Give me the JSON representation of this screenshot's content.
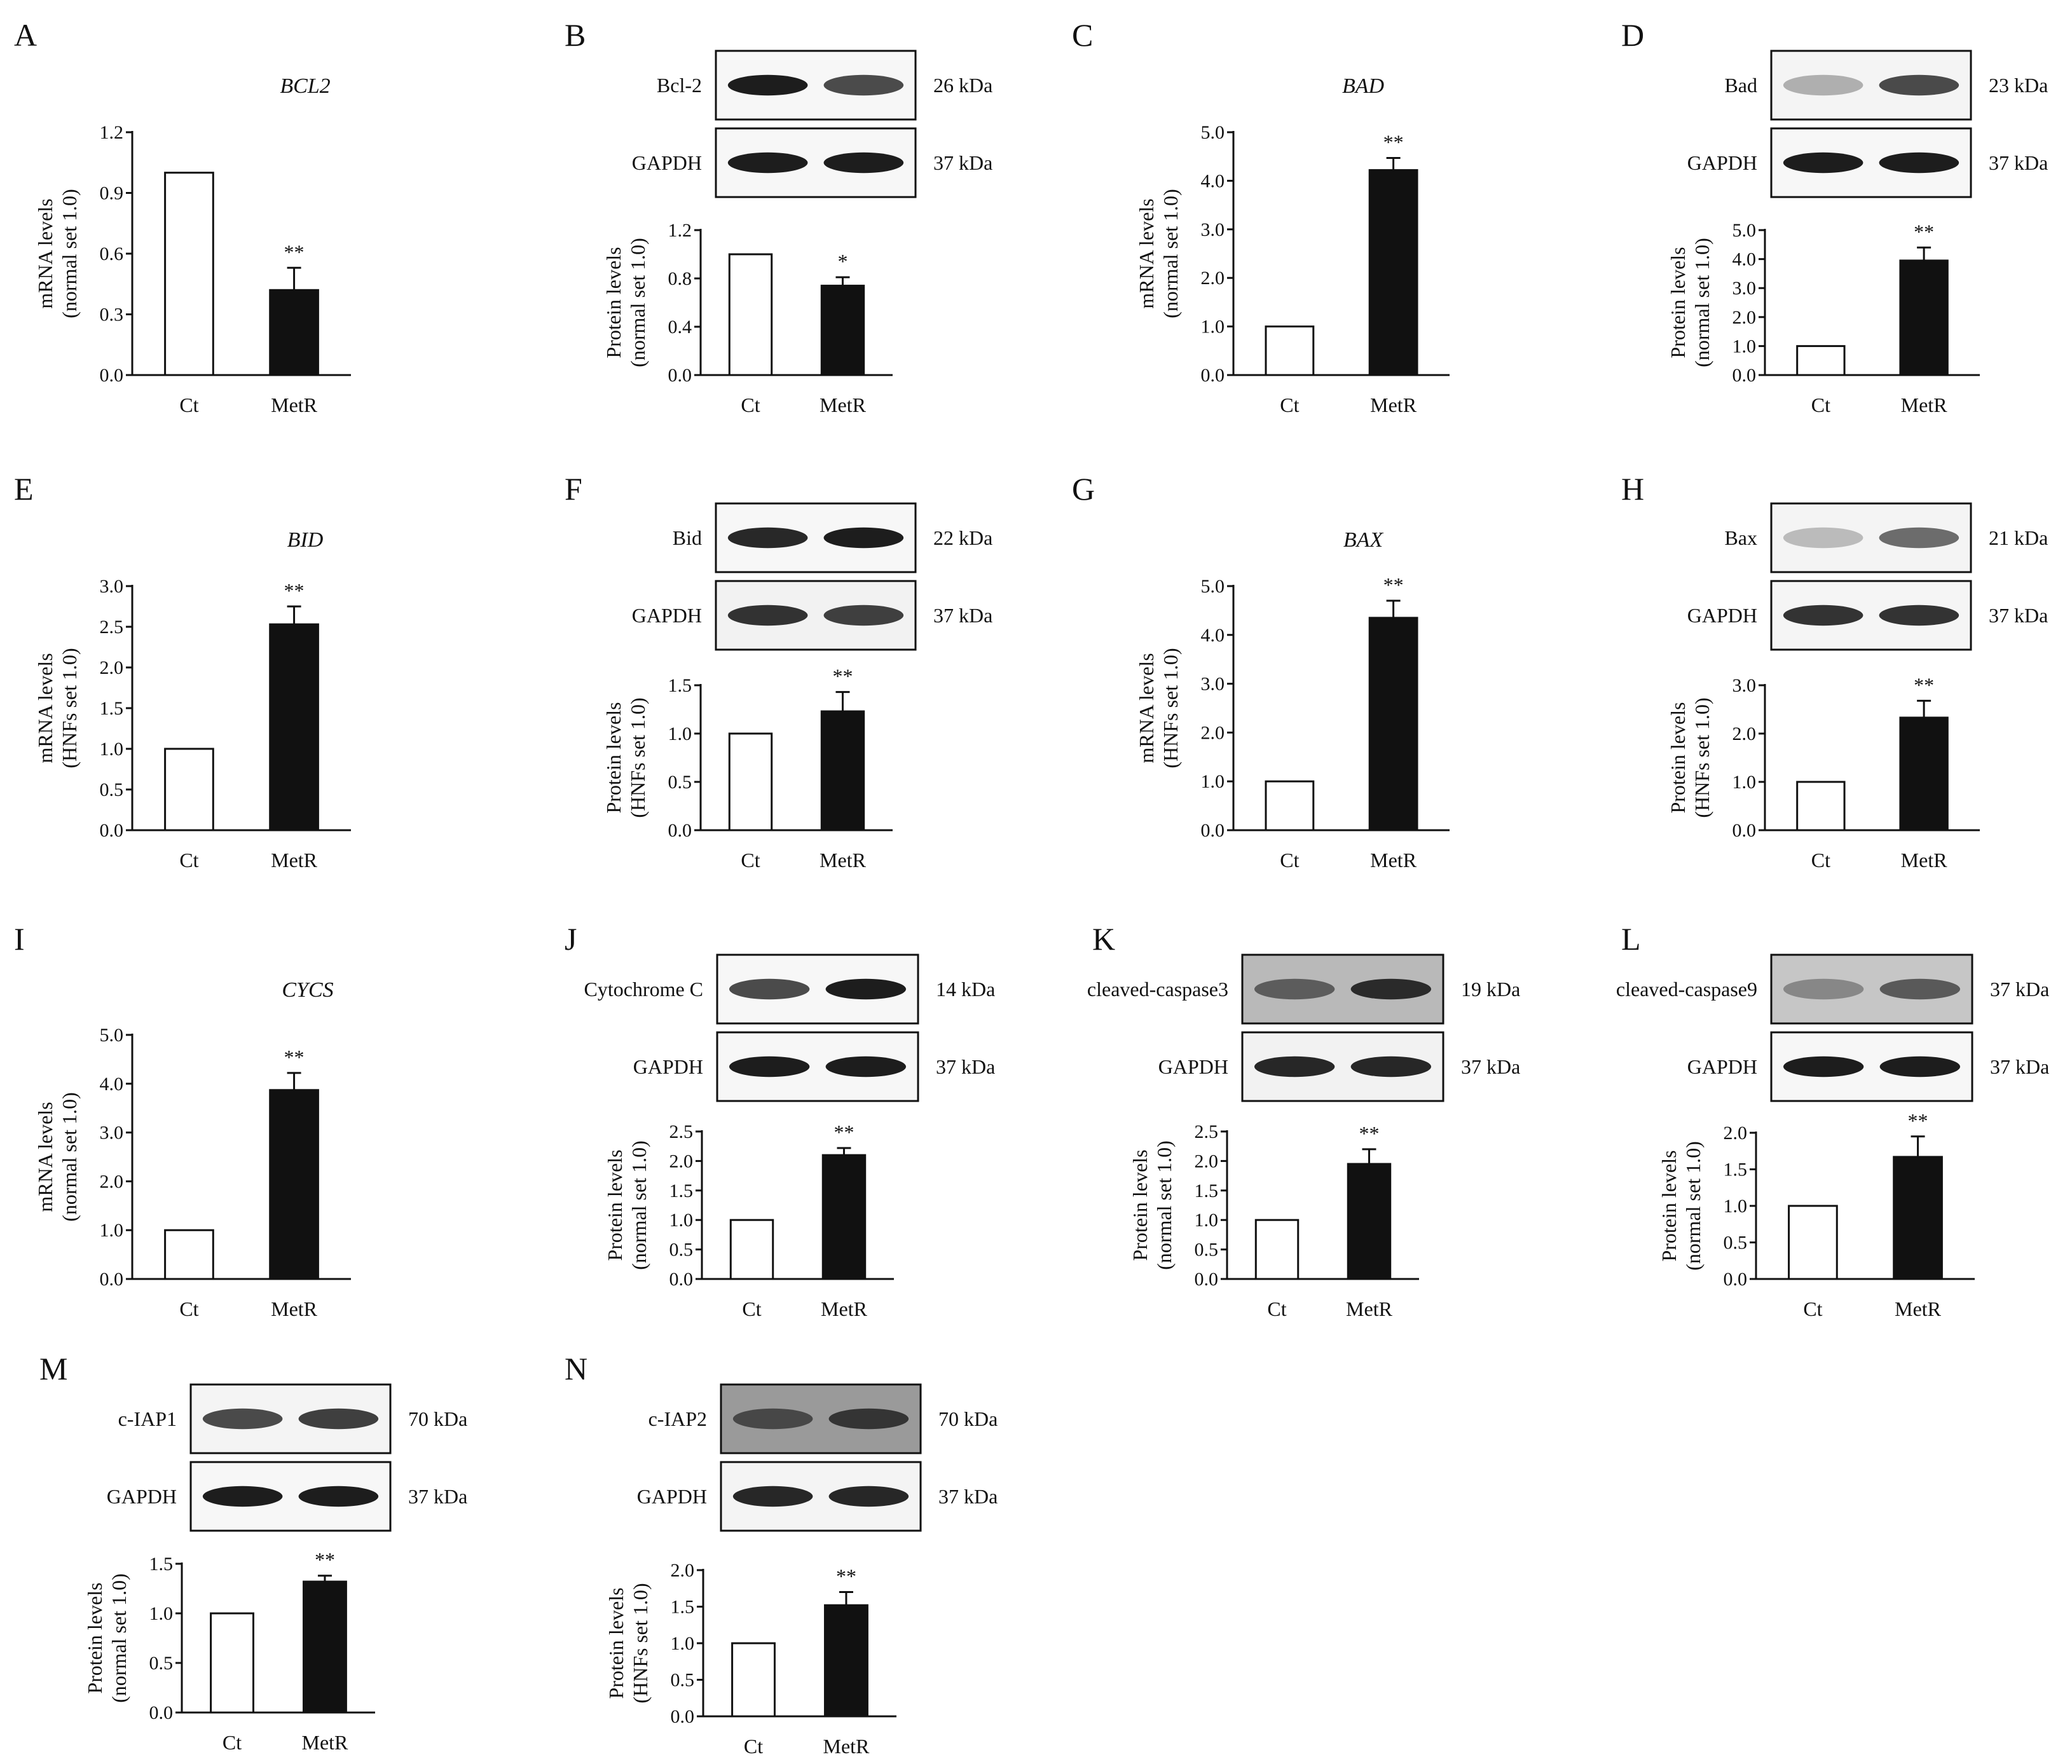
{
  "chart_data": [
    {
      "panel": "A",
      "type": "bar",
      "title": "BCL2",
      "ylabel": [
        "mRNA levels",
        "(normal set 1.0)"
      ],
      "categories": [
        "Ct",
        "MetR"
      ],
      "values": [
        1.0,
        0.42
      ],
      "errors": [
        0,
        0.11
      ],
      "significance": [
        "",
        "**"
      ],
      "yticks": [
        "0.0",
        "0.3",
        "0.6",
        "0.9",
        "1.2"
      ],
      "ylim": [
        0,
        1.2
      ]
    },
    {
      "panel": "B",
      "type": "bar",
      "blots": [
        {
          "label": "Bcl-2",
          "kda": "26 kDa"
        },
        {
          "label": "GAPDH",
          "kda": "37 kDa"
        }
      ],
      "ylabel": [
        "Protein levels",
        "(normal set 1.0)"
      ],
      "categories": [
        "Ct",
        "MetR"
      ],
      "values": [
        1.0,
        0.74
      ],
      "errors": [
        0,
        0.07
      ],
      "significance": [
        "",
        "*"
      ],
      "yticks": [
        "0.0",
        "0.4",
        "0.8",
        "1.2"
      ],
      "ylim": [
        0,
        1.2
      ]
    },
    {
      "panel": "C",
      "type": "bar",
      "title": "BAD",
      "ylabel": [
        "mRNA levels",
        "(normal set 1.0)"
      ],
      "categories": [
        "Ct",
        "MetR"
      ],
      "values": [
        1.0,
        4.22
      ],
      "errors": [
        0,
        0.25
      ],
      "significance": [
        "",
        "**"
      ],
      "yticks": [
        "0.0",
        "1.0",
        "2.0",
        "3.0",
        "4.0",
        "5.0"
      ],
      "ylim": [
        0,
        5
      ]
    },
    {
      "panel": "D",
      "type": "bar",
      "blots": [
        {
          "label": "Bad",
          "kda": "23 kDa"
        },
        {
          "label": "GAPDH",
          "kda": "37 kDa"
        }
      ],
      "ylabel": [
        "Protein levels",
        "(normal set 1.0)"
      ],
      "categories": [
        "Ct",
        "MetR"
      ],
      "values": [
        1.0,
        3.95
      ],
      "errors": [
        0,
        0.45
      ],
      "significance": [
        "",
        "**"
      ],
      "yticks": [
        "0.0",
        "1.0",
        "2.0",
        "3.0",
        "4.0",
        "5.0"
      ],
      "ylim": [
        0,
        5
      ]
    },
    {
      "panel": "E",
      "type": "bar",
      "title": "BID",
      "ylabel": [
        "mRNA levels",
        "(HNFs set 1.0)"
      ],
      "categories": [
        "Ct",
        "MetR"
      ],
      "values": [
        1.0,
        2.53
      ],
      "errors": [
        0,
        0.22
      ],
      "significance": [
        "",
        "**"
      ],
      "yticks": [
        "0.0",
        "0.5",
        "1.0",
        "1.5",
        "2.0",
        "2.5",
        "3.0"
      ],
      "ylim": [
        0,
        3
      ]
    },
    {
      "panel": "F",
      "type": "bar",
      "blots": [
        {
          "label": "Bid",
          "kda": "22 kDa"
        },
        {
          "label": "GAPDH",
          "kda": "37 kDa"
        }
      ],
      "ylabel": [
        "Protein levels",
        "(HNFs set 1.0)"
      ],
      "categories": [
        "Ct",
        "MetR"
      ],
      "values": [
        1.0,
        1.23
      ],
      "errors": [
        0,
        0.2
      ],
      "significance": [
        "",
        "**"
      ],
      "yticks": [
        "0.0",
        "0.5",
        "1.0",
        "1.5"
      ],
      "ylim": [
        0,
        1.5
      ]
    },
    {
      "panel": "G",
      "type": "bar",
      "title": "BAX",
      "ylabel": [
        "mRNA levels",
        "(HNFs set 1.0)"
      ],
      "categories": [
        "Ct",
        "MetR"
      ],
      "values": [
        1.0,
        4.35
      ],
      "errors": [
        0,
        0.35
      ],
      "significance": [
        "",
        "**"
      ],
      "yticks": [
        "0.0",
        "1.0",
        "2.0",
        "3.0",
        "4.0",
        "5.0"
      ],
      "ylim": [
        0,
        5
      ]
    },
    {
      "panel": "H",
      "type": "bar",
      "blots": [
        {
          "label": "Bax",
          "kda": "21 kDa"
        },
        {
          "label": "GAPDH",
          "kda": "37 kDa"
        }
      ],
      "ylabel": [
        "Protein levels",
        "(HNFs set 1.0)"
      ],
      "categories": [
        "Ct",
        "MetR"
      ],
      "values": [
        1.0,
        2.33
      ],
      "errors": [
        0,
        0.35
      ],
      "significance": [
        "",
        "**"
      ],
      "yticks": [
        "0.0",
        "1.0",
        "2.0",
        "3.0"
      ],
      "ylim": [
        0,
        3
      ]
    },
    {
      "panel": "I",
      "type": "bar",
      "title": "CYCS",
      "ylabel": [
        "mRNA levels",
        "(normal set 1.0)"
      ],
      "categories": [
        "Ct",
        "MetR"
      ],
      "values": [
        1.0,
        3.87
      ],
      "errors": [
        0,
        0.35
      ],
      "significance": [
        "",
        "**"
      ],
      "yticks": [
        "0.0",
        "1.0",
        "2.0",
        "3.0",
        "4.0",
        "5.0"
      ],
      "ylim": [
        0,
        5
      ]
    },
    {
      "panel": "J",
      "type": "bar",
      "blots": [
        {
          "label": "Cytochrome C",
          "kda": "14 kDa"
        },
        {
          "label": "GAPDH",
          "kda": "37 kDa"
        }
      ],
      "ylabel": [
        "Protein levels",
        "(normal set 1.0)"
      ],
      "categories": [
        "Ct",
        "MetR"
      ],
      "values": [
        1.0,
        2.1
      ],
      "errors": [
        0,
        0.12
      ],
      "significance": [
        "",
        "**"
      ],
      "yticks": [
        "0.0",
        "0.5",
        "1.0",
        "1.5",
        "2.0",
        "2.5"
      ],
      "ylim": [
        0,
        2.5
      ]
    },
    {
      "panel": "K",
      "type": "bar",
      "blots": [
        {
          "label": "cleaved-caspase3",
          "kda": "19 kDa"
        },
        {
          "label": "GAPDH",
          "kda": "37 kDa"
        }
      ],
      "ylabel": [
        "Protein levels",
        "(normal set 1.0)"
      ],
      "categories": [
        "Ct",
        "MetR"
      ],
      "values": [
        1.0,
        1.95
      ],
      "errors": [
        0,
        0.25
      ],
      "significance": [
        "",
        "**"
      ],
      "yticks": [
        "0.0",
        "0.5",
        "1.0",
        "1.5",
        "2.0",
        "2.5"
      ],
      "ylim": [
        0,
        2.5
      ]
    },
    {
      "panel": "L",
      "type": "bar",
      "blots": [
        {
          "label": "cleaved-caspase9",
          "kda": "37 kDa"
        },
        {
          "label": "GAPDH",
          "kda": "37 kDa"
        }
      ],
      "ylabel": [
        "Protein levels",
        "(normal set 1.0)"
      ],
      "categories": [
        "Ct",
        "MetR"
      ],
      "values": [
        1.0,
        1.67
      ],
      "errors": [
        0,
        0.28
      ],
      "significance": [
        "",
        "**"
      ],
      "yticks": [
        "0.0",
        "0.5",
        "1.0",
        "1.5",
        "2.0"
      ],
      "ylim": [
        0,
        2
      ]
    },
    {
      "panel": "M",
      "type": "bar",
      "blots": [
        {
          "label": "c-IAP1",
          "kda": "70 kDa"
        },
        {
          "label": "GAPDH",
          "kda": "37 kDa"
        }
      ],
      "ylabel": [
        "Protein levels",
        "(normal set 1.0)"
      ],
      "categories": [
        "Ct",
        "MetR"
      ],
      "values": [
        1.0,
        1.32
      ],
      "errors": [
        0,
        0.06
      ],
      "significance": [
        "",
        "**"
      ],
      "yticks": [
        "0.0",
        "0.5",
        "1.0",
        "1.5"
      ],
      "ylim": [
        0,
        1.5
      ]
    },
    {
      "panel": "N",
      "type": "bar",
      "blots": [
        {
          "label": "c-IAP2",
          "kda": "70 kDa"
        },
        {
          "label": "GAPDH",
          "kda": "37 kDa"
        }
      ],
      "ylabel": [
        "Protein levels",
        "(HNFs set 1.0)"
      ],
      "categories": [
        "Ct",
        "MetR"
      ],
      "values": [
        1.0,
        1.52
      ],
      "errors": [
        0,
        0.18
      ],
      "significance": [
        "",
        "**"
      ],
      "yticks": [
        "0.0",
        "0.5",
        "1.0",
        "1.5",
        "2.0"
      ],
      "ylim": [
        0,
        2
      ]
    }
  ],
  "blot_images": {
    "B": [
      {
        "bands": [
          0.95,
          0.75
        ],
        "bg": "#f7f7f7"
      },
      {
        "bands": [
          0.95,
          0.95
        ],
        "bg": "#f7f7f7"
      }
    ],
    "D": [
      {
        "bands": [
          0.3,
          0.75
        ],
        "bg": "#f4f4f4"
      },
      {
        "bands": [
          0.95,
          0.95
        ],
        "bg": "#f7f7f7"
      }
    ],
    "F": [
      {
        "bands": [
          0.9,
          0.95
        ],
        "bg": "#f7f7f7"
      },
      {
        "bands": [
          0.85,
          0.8
        ],
        "bg": "#f2f2f2"
      }
    ],
    "H": [
      {
        "bands": [
          0.25,
          0.6
        ],
        "bg": "#f4f4f4"
      },
      {
        "bands": [
          0.85,
          0.85
        ],
        "bg": "#f5f5f5"
      }
    ],
    "J": [
      {
        "bands": [
          0.75,
          0.95
        ],
        "bg": "#f7f7f7"
      },
      {
        "bands": [
          0.95,
          0.95
        ],
        "bg": "#f7f7f7"
      }
    ],
    "K": [
      {
        "bands": [
          0.55,
          0.85
        ],
        "bg": "#b9b9b9"
      },
      {
        "bands": [
          0.9,
          0.9
        ],
        "bg": "#f2f2f2"
      }
    ],
    "L": [
      {
        "bands": [
          0.35,
          0.6
        ],
        "bg": "#c6c6c6"
      },
      {
        "bands": [
          0.95,
          0.95
        ],
        "bg": "#f7f7f7"
      }
    ],
    "M": [
      {
        "bands": [
          0.75,
          0.8
        ],
        "bg": "#f4f4f4"
      },
      {
        "bands": [
          0.95,
          0.95
        ],
        "bg": "#f7f7f7"
      }
    ],
    "N": [
      {
        "bands": [
          0.6,
          0.75
        ],
        "bg": "#9a9a9a"
      },
      {
        "bands": [
          0.9,
          0.9
        ],
        "bg": "#f4f4f4"
      }
    ]
  },
  "colors": {
    "control_fill": "#ffffff",
    "metr_fill": "#111111",
    "axis": "#111111",
    "band": "#111111"
  }
}
